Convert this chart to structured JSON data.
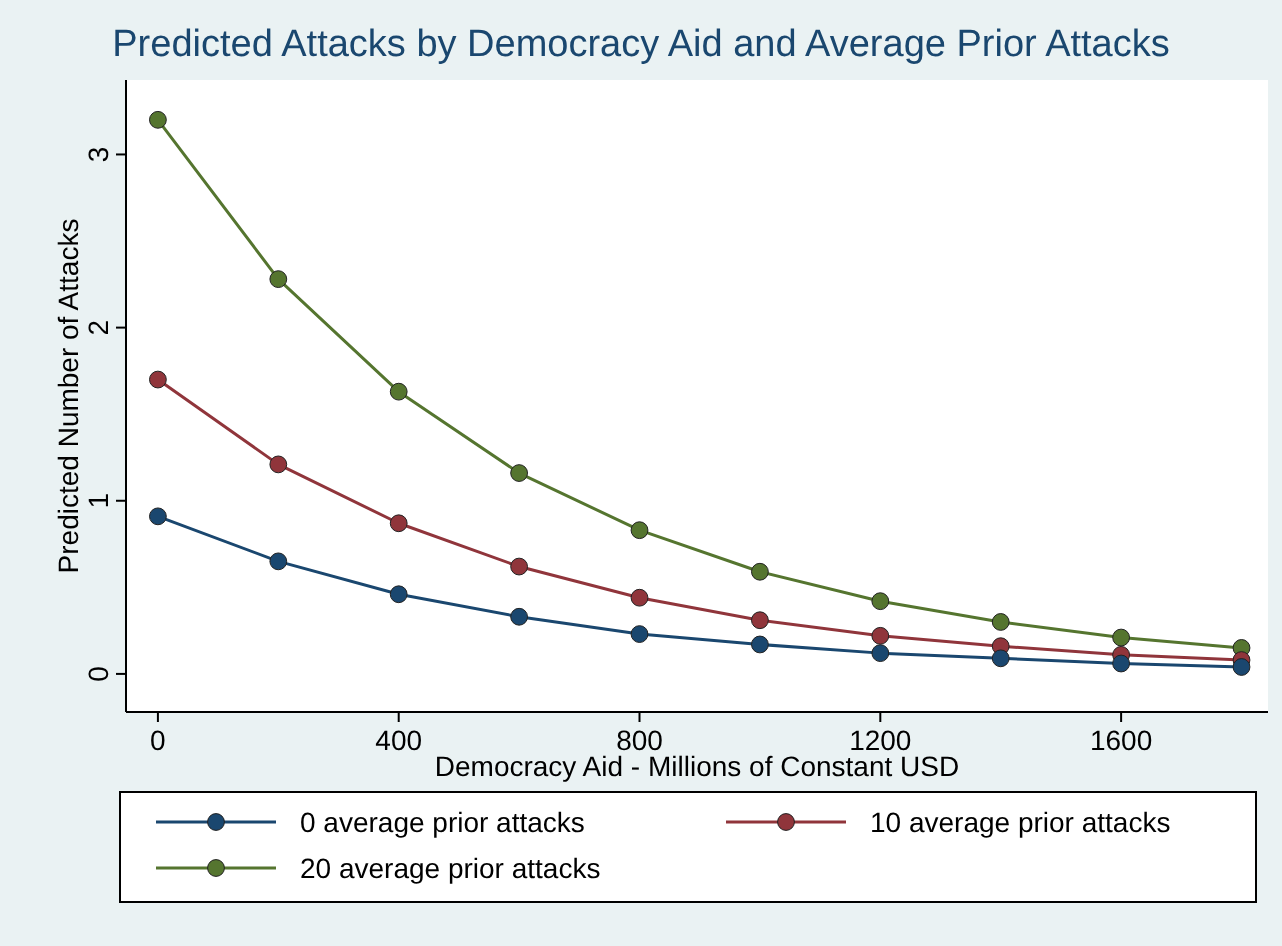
{
  "chart_data": {
    "type": "line",
    "title": "Predicted Attacks by Democracy Aid and Average Prior Attacks",
    "xlabel": "Democracy Aid - Millions of Constant USD",
    "ylabel": "Predicted Number of Attacks",
    "x": [
      0,
      200,
      400,
      600,
      800,
      1000,
      1200,
      1400,
      1600,
      1800
    ],
    "series": [
      {
        "name": "0 average prior attacks",
        "color": "#1a476f",
        "values": [
          0.91,
          0.65,
          0.46,
          0.33,
          0.23,
          0.17,
          0.12,
          0.09,
          0.06,
          0.04
        ]
      },
      {
        "name": "10 average prior attacks",
        "color": "#90353b",
        "values": [
          1.7,
          1.21,
          0.87,
          0.62,
          0.44,
          0.31,
          0.22,
          0.16,
          0.11,
          0.08
        ]
      },
      {
        "name": "20 average prior attacks",
        "color": "#55752f",
        "values": [
          3.2,
          2.28,
          1.63,
          1.16,
          0.83,
          0.59,
          0.42,
          0.3,
          0.21,
          0.15
        ]
      }
    ],
    "xlim": [
      -53,
      1844
    ],
    "ylim": [
      -0.22,
      3.43
    ],
    "xticks": [
      0,
      400,
      800,
      1200,
      1600
    ],
    "yticks": [
      0,
      1,
      2,
      3
    ],
    "marker": "circle",
    "line_style": "solid",
    "legend": "bottom",
    "grid": false
  }
}
